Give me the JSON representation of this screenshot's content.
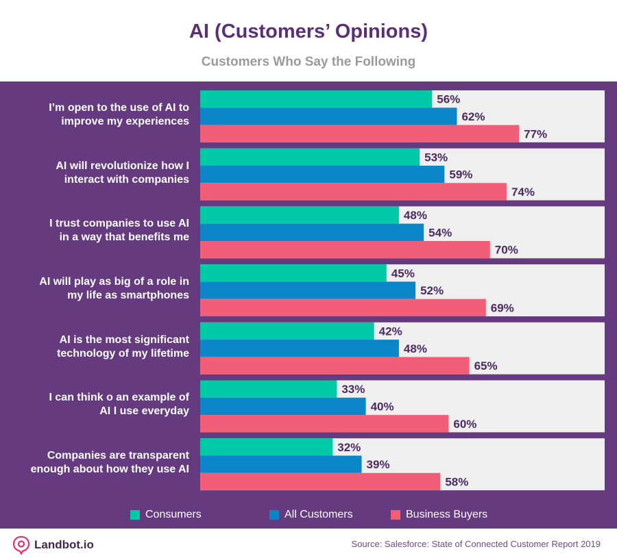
{
  "brand": "Landbot.io",
  "source": "Source: Salesforce: State of Connected Customer Report 2019",
  "colors": {
    "background_panel": "#653a7e",
    "bar_track": "#efefef",
    "consumers": "#00c9a7",
    "all_customers": "#0b86c9",
    "business_buyers": "#f25d78",
    "value_text": "#4a2a60",
    "title": "#5b2f78"
  },
  "chart_data": {
    "type": "bar",
    "orientation": "horizontal",
    "title": "AI (Customers’ Opinions)",
    "subtitle": "Customers Who Say the Following",
    "categories": [
      "I’m open to the use of AI to improve my experiences",
      "AI will revolutionize how I interact with companies",
      "I trust companies to use AI in a way that benefits me",
      "AI will play as big of a role in my life as smartphones",
      "AI is the most significant technology of my lifetime",
      "I can think o an example of AI I use everyday",
      "Companies are transparent enough about how they use AI"
    ],
    "category_lines": [
      [
        "I’m open to the use of AI to",
        "improve my experiences"
      ],
      [
        "AI will revolutionize how I",
        "interact with companies"
      ],
      [
        "I trust companies to use AI",
        "in a way that benefits me"
      ],
      [
        "AI will play as big of a role in",
        "my life as smartphones"
      ],
      [
        "AI is the most significant",
        "technology of my lifetime"
      ],
      [
        "I can think o an example of",
        "AI I use everyday"
      ],
      [
        "Companies are transparent",
        "enough about how they use AI"
      ]
    ],
    "series": [
      {
        "name": "Consumers",
        "values": [
          56,
          53,
          48,
          45,
          42,
          33,
          32
        ],
        "labels": [
          "56%",
          "53%",
          "48%",
          "45%",
          "42%",
          "33%",
          "32%"
        ]
      },
      {
        "name": "All Customers",
        "values": [
          62,
          59,
          54,
          52,
          48,
          40,
          39
        ],
        "labels": [
          "62%",
          "59%",
          "54%",
          "52%",
          "48%",
          "40%",
          "39%"
        ]
      },
      {
        "name": "Business Buyers",
        "values": [
          77,
          74,
          70,
          69,
          65,
          60,
          58
        ],
        "labels": [
          "77%",
          "74%",
          "70%",
          "69%",
          "65%",
          "60%",
          "58%"
        ]
      }
    ],
    "xlim": [
      0,
      100
    ],
    "unit": "%",
    "legend_position": "bottom"
  }
}
